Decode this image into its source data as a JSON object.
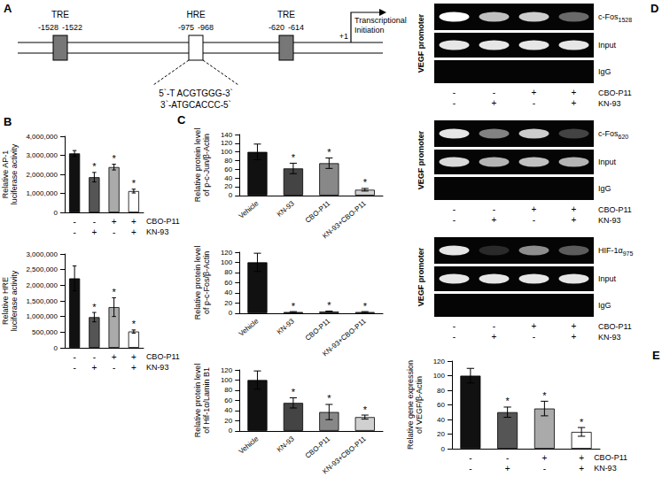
{
  "panel_labels": [
    "A",
    "B",
    "C",
    "D",
    "E"
  ],
  "diagram": {
    "elements": [
      {
        "name": "TRE",
        "start": -1528,
        "end": -1522,
        "color": "#777777"
      },
      {
        "name": "HRE",
        "start": -975,
        "end": -968,
        "color": "#ffffff"
      },
      {
        "name": "TRE",
        "start": -620,
        "end": -614,
        "color": "#777777"
      }
    ],
    "start_site": "+1",
    "start_label": "Transcriptional Initiation",
    "sequence": [
      "5`-T ACGTGGG-3`",
      "3`-ATGCACCC-5`"
    ]
  },
  "gels": [
    {
      "side_label": "VEGF promoter",
      "rows": [
        {
          "label": "c-Fos",
          "sub": "1528",
          "bands": [
            1.0,
            0.75,
            0.8,
            0.4
          ]
        },
        {
          "label": "Input",
          "bands": [
            0.9,
            0.9,
            0.9,
            0.9
          ]
        },
        {
          "label": "IgG",
          "bands": [
            0,
            0,
            0,
            0
          ]
        }
      ],
      "treatments": [
        {
          "name": "CBO-P11",
          "signs": [
            "-",
            "-",
            "+",
            "+"
          ]
        },
        {
          "name": "KN-93",
          "signs": [
            "-",
            "+",
            "-",
            "+"
          ]
        }
      ]
    },
    {
      "side_label": "VEGF promoter",
      "rows": [
        {
          "label": "c-Fos",
          "sub": "620",
          "bands": [
            0.9,
            0.5,
            0.8,
            0.25
          ]
        },
        {
          "label": "Input",
          "bands": [
            0.85,
            0.7,
            0.75,
            0.7
          ]
        },
        {
          "label": "IgG",
          "bands": [
            0,
            0,
            0,
            0
          ]
        }
      ],
      "treatments": [
        {
          "name": "CBO-P11",
          "signs": [
            "-",
            "-",
            "+",
            "+"
          ]
        },
        {
          "name": "KN-93",
          "signs": [
            "-",
            "+",
            "-",
            "+"
          ]
        }
      ]
    },
    {
      "side_label": "VEGF promoter",
      "rows": [
        {
          "label": "HIF-1α",
          "sub": "975",
          "bands": [
            0.9,
            0.15,
            0.55,
            0.35
          ]
        },
        {
          "label": "Input",
          "bands": [
            0.9,
            0.9,
            0.9,
            0.9
          ]
        },
        {
          "label": "IgG",
          "bands": [
            0,
            0,
            0,
            0
          ]
        }
      ],
      "treatments": [
        {
          "name": "CBO-P11",
          "signs": [
            "-",
            "-",
            "+",
            "+"
          ]
        },
        {
          "name": "KN-93",
          "signs": [
            "-",
            "+",
            "-",
            "+"
          ]
        }
      ]
    }
  ],
  "chart_data": [
    {
      "type": "bar",
      "y_label": "Relative AP-1 luciferase activity",
      "categories": [
        null,
        null,
        null,
        null
      ],
      "values": [
        3100000,
        1850000,
        2380000,
        1120000
      ],
      "errors": [
        150000,
        250000,
        150000,
        100000
      ],
      "annotations": [
        null,
        "*",
        "*",
        "*"
      ],
      "colors": [
        "#111111",
        "#555555",
        "#aaaaaa",
        "#ffffff"
      ],
      "ylim": [
        0,
        4000000
      ],
      "yticks": [
        0,
        {
          "value": 1000000,
          "label": "1,000,000"
        },
        {
          "value": 2000000,
          "label": "2,000,000"
        },
        {
          "value": 3000000,
          "label": "3,000,000"
        },
        {
          "value": 4000000,
          "label": "4,000,000"
        }
      ],
      "tick_labels": "y",
      "grid": false,
      "treatments": [
        {
          "name": "CBO-P11",
          "signs": [
            "-",
            "-",
            "+",
            "+"
          ]
        },
        {
          "name": "KN-93",
          "signs": [
            "-",
            "+",
            "-",
            "+"
          ]
        }
      ]
    },
    {
      "type": "bar",
      "y_label": "Relative HRE luciferase activity",
      "categories": [
        null,
        null,
        null,
        null
      ],
      "values": [
        2220000,
        980000,
        1300000,
        520000
      ],
      "errors": [
        400000,
        150000,
        300000,
        50000
      ],
      "annotations": [
        null,
        "*",
        "*",
        "*"
      ],
      "colors": [
        "#111111",
        "#555555",
        "#aaaaaa",
        "#ffffff"
      ],
      "ylim": [
        0,
        3000000
      ],
      "yticks": [
        0,
        {
          "value": 500000,
          "label": "500,000"
        },
        {
          "value": 1000000,
          "label": "1,000,000"
        },
        {
          "value": 1500000,
          "label": "1,500,000"
        },
        {
          "value": 2000000,
          "label": "2,000,000"
        },
        {
          "value": 2500000,
          "label": "2,500,000"
        },
        {
          "value": 3000000,
          "label": "3,000,000"
        }
      ],
      "tick_labels": "y",
      "grid": false,
      "treatments": [
        {
          "name": "CBO-P11",
          "signs": [
            "-",
            "-",
            "+",
            "+"
          ]
        },
        {
          "name": "KN-93",
          "signs": [
            "-",
            "+",
            "-",
            "+"
          ]
        }
      ]
    },
    {
      "type": "bar",
      "y_label": "Relative protein level of p-c-Jun/β-Actin",
      "categories": [
        "Vehicle",
        "KN-93",
        "CBO-P11",
        "KN-93+CBO-P11"
      ],
      "values": [
        100,
        62,
        74,
        13
      ],
      "errors": [
        18,
        12,
        12,
        3
      ],
      "annotations": [
        null,
        "*",
        "*",
        "*"
      ],
      "colors": [
        "#111111",
        "#444444",
        "#888888",
        "#d0d0d0"
      ],
      "ylim": [
        0,
        140
      ],
      "yticks": [
        0,
        20,
        40,
        60,
        80,
        100,
        120,
        140
      ],
      "grid": false
    },
    {
      "type": "bar",
      "y_label": "Relative protein level of p-c-Fos/β-Actin",
      "categories": [
        "Vehicle",
        "KN-93",
        "CBO-P11",
        "KN-93+CBO-P11"
      ],
      "values": [
        100,
        2,
        3,
        2
      ],
      "errors": [
        18,
        1,
        1,
        1
      ],
      "annotations": [
        null,
        "*",
        "*",
        "*"
      ],
      "colors": [
        "#111111",
        "#444444",
        "#888888",
        "#d0d0d0"
      ],
      "ylim": [
        0,
        120
      ],
      "yticks": [
        0,
        20,
        40,
        60,
        80,
        100,
        120
      ],
      "grid": false
    },
    {
      "type": "bar",
      "y_label": "Relative protein level of Hif-1α/Lamin B1",
      "categories": [
        "Vehicle",
        "KN-93",
        "CBO-P11",
        "KN-93+CBO-P11"
      ],
      "values": [
        100,
        55,
        37,
        27
      ],
      "errors": [
        18,
        10,
        15,
        4
      ],
      "annotations": [
        null,
        "*",
        "*",
        "*"
      ],
      "colors": [
        "#111111",
        "#444444",
        "#888888",
        "#d0d0d0"
      ],
      "ylim": [
        0,
        120
      ],
      "yticks": [
        0,
        20,
        40,
        60,
        80,
        100,
        120
      ],
      "grid": false
    },
    {
      "type": "bar",
      "y_label": "Relative gene expression of VEGF/β-Actin",
      "categories": [
        null,
        null,
        null,
        null
      ],
      "values": [
        100,
        50,
        55,
        23
      ],
      "errors": [
        10,
        7,
        10,
        6
      ],
      "annotations": [
        null,
        "*",
        "*",
        "*"
      ],
      "colors": [
        "#111111",
        "#555555",
        "#aaaaaa",
        "#ffffff"
      ],
      "ylim": [
        0,
        120
      ],
      "yticks": [
        0,
        20,
        40,
        60,
        80,
        100,
        120
      ],
      "tick_labels": "y",
      "grid": false,
      "treatments": [
        {
          "name": "CBO-P11",
          "signs": [
            "-",
            "-",
            "+",
            "+"
          ]
        },
        {
          "name": "KN-93",
          "signs": [
            "-",
            "+",
            "-",
            "+"
          ]
        }
      ]
    }
  ]
}
